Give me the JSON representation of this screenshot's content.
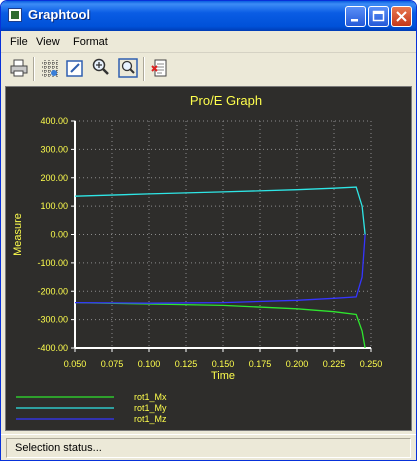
{
  "window": {
    "title": "Graphtool"
  },
  "menu": {
    "items": [
      "File",
      "View",
      "Format"
    ]
  },
  "toolbar": {
    "icons": [
      "print-icon",
      "grid-icon",
      "edit-icon",
      "zoom-in-icon",
      "zoom-fit-icon",
      "export-icon"
    ]
  },
  "status": {
    "text": "Selection status..."
  },
  "colors": {
    "plot_bg": "#2e2d2b",
    "title": "#ffff4d",
    "axis_text": "#ffff4d",
    "grid": "#8c8c8c"
  },
  "chart_data": {
    "type": "line",
    "title": "Pro/E Graph",
    "xlabel": "Time",
    "ylabel": "Measure",
    "xlim": [
      0.05,
      0.25
    ],
    "ylim": [
      -400,
      400
    ],
    "xticks": [
      "0.050",
      "0.075",
      "0.100",
      "0.125",
      "0.150",
      "0.175",
      "0.200",
      "0.225",
      "0.250"
    ],
    "yticks": [
      "400.00",
      "300.00",
      "200.00",
      "100.00",
      "0.00",
      "-100.00",
      "-200.00",
      "-300.00",
      "-400.00"
    ],
    "grid": true,
    "legend_position": "bottom-left",
    "series": [
      {
        "name": "rot1_Mx",
        "color": "#2ee62e",
        "x": [
          0.05,
          0.1,
          0.15,
          0.2,
          0.225,
          0.24,
          0.244,
          0.246
        ],
        "y": [
          -240,
          -245,
          -250,
          -262,
          -272,
          -282,
          -340,
          -400
        ]
      },
      {
        "name": "rot1_My",
        "color": "#2ee6e6",
        "x": [
          0.05,
          0.1,
          0.15,
          0.2,
          0.225,
          0.24,
          0.244,
          0.246
        ],
        "y": [
          135,
          143,
          150,
          158,
          163,
          167,
          100,
          0
        ]
      },
      {
        "name": "rot1_Mz",
        "color": "#3535ff",
        "x": [
          0.05,
          0.1,
          0.15,
          0.2,
          0.225,
          0.24,
          0.244,
          0.246
        ],
        "y": [
          -240,
          -242,
          -240,
          -232,
          -225,
          -220,
          -150,
          0
        ]
      }
    ]
  }
}
